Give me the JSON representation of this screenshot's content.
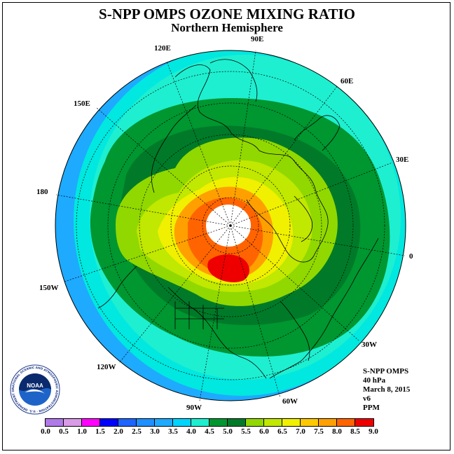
{
  "title": "S-NPP OMPS OZONE MIXING RATIO",
  "subtitle": "Northern Hemisphere",
  "longitude_labels": [
    "90E",
    "60E",
    "30E",
    "0",
    "30W",
    "60W",
    "90W",
    "120W",
    "150W",
    "180",
    "150E",
    "120E"
  ],
  "info": {
    "instrument": "S-NPP OMPS",
    "level": "40 hPa",
    "date": "March 8, 2015",
    "version": "v6",
    "units": "PPM"
  },
  "logo": {
    "text": "NOAA",
    "ring_text": "NATIONAL OCEANIC AND ATMOSPHERIC ADMINISTRATION · U.S. DEPARTMENT OF COMMERCE"
  },
  "colorbar": {
    "ticks": [
      "0.0",
      "0.5",
      "1.0",
      "1.5",
      "2.0",
      "2.5",
      "3.0",
      "3.5",
      "4.0",
      "4.5",
      "5.0",
      "5.5",
      "6.0",
      "6.5",
      "7.0",
      "7.5",
      "8.0",
      "8.5",
      "9.0"
    ],
    "colors": [
      "#b07ae8",
      "#d99ae6",
      "#ff00ff",
      "#0000ff",
      "#1e64ff",
      "#1e90ff",
      "#1eaaff",
      "#00d4ff",
      "#1eefd0",
      "#009630",
      "#007a28",
      "#90d800",
      "#c0e800",
      "#f0f000",
      "#ffc800",
      "#ffa000",
      "#ff6400",
      "#ee0000",
      "#8b5a3c"
    ]
  },
  "colors": {
    "bg_disk": "#1eaaff",
    "cyan": "#00e8e0",
    "teal": "#1eefd0",
    "green": "#009630",
    "dark_green": "#007a28",
    "lime": "#90d800",
    "yellow_green": "#c0e800",
    "yellow": "#f0f000",
    "orange": "#ffa000",
    "dark_orange": "#ff6400",
    "red": "#ee0000",
    "missing": "#ffffff"
  }
}
